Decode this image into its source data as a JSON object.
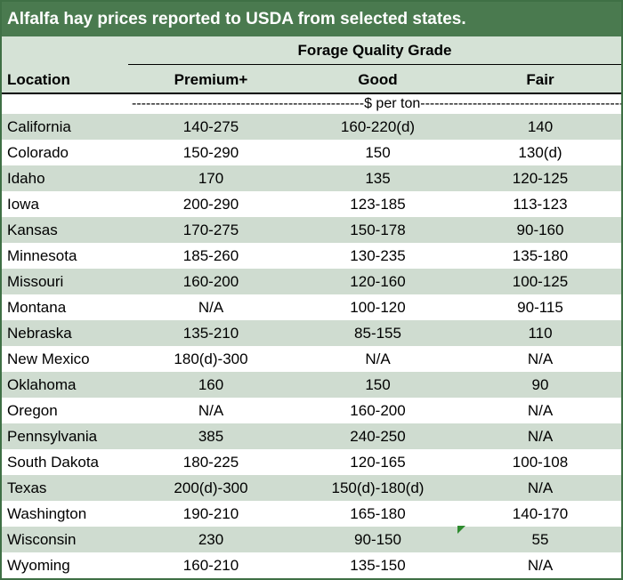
{
  "title": "Alfalfa hay prices reported to USDA from selected states.",
  "group_header": "Forage Quality Grade",
  "columns": {
    "location": "Location",
    "premium": "Premium+",
    "good": "Good",
    "fair": "Fair"
  },
  "unit_label": "-------------------------------------------------$ per ton-----------------------------------------------------------------------",
  "rows": [
    {
      "location": "California",
      "premium": "140-275",
      "good": "160-220(d)",
      "fair": "140"
    },
    {
      "location": "Colorado",
      "premium": "150-290",
      "good": "150",
      "fair": "130(d)"
    },
    {
      "location": "Idaho",
      "premium": "170",
      "good": "135",
      "fair": "120-125"
    },
    {
      "location": "Iowa",
      "premium": "200-290",
      "good": "123-185",
      "fair": "113-123"
    },
    {
      "location": "Kansas",
      "premium": "170-275",
      "good": "150-178",
      "fair": "90-160"
    },
    {
      "location": "Minnesota",
      "premium": "185-260",
      "good": "130-235",
      "fair": "135-180"
    },
    {
      "location": "Missouri",
      "premium": "160-200",
      "good": "120-160",
      "fair": "100-125"
    },
    {
      "location": "Montana",
      "premium": "N/A",
      "good": "100-120",
      "fair": "90-115"
    },
    {
      "location": "Nebraska",
      "premium": "135-210",
      "good": "85-155",
      "fair": "110"
    },
    {
      "location": "New Mexico",
      "premium": "180(d)-300",
      "good": "N/A",
      "fair": "N/A"
    },
    {
      "location": "Oklahoma",
      "premium": "160",
      "good": "150",
      "fair": "90"
    },
    {
      "location": "Oregon",
      "premium": "N/A",
      "good": "160-200",
      "fair": "N/A"
    },
    {
      "location": "Pennsylvania",
      "premium": "385",
      "good": "240-250",
      "fair": "N/A"
    },
    {
      "location": "South Dakota",
      "premium": "180-225",
      "good": "120-165",
      "fair": "100-108"
    },
    {
      "location": "Texas",
      "premium": "200(d)-300",
      "good": "150(d)-180(d)",
      "fair": "N/A"
    },
    {
      "location": "Washington",
      "premium": "190-210",
      "good": "165-180",
      "fair": "140-170"
    },
    {
      "location": "Wisconsin",
      "premium": "230",
      "good": "90-150",
      "fair": "55"
    },
    {
      "location": "Wyoming",
      "premium": "160-210",
      "good": "135-150",
      "fair": "N/A"
    }
  ],
  "colors": {
    "title_bg": "#4a7a4f",
    "header_bg": "#d5e2d6",
    "shaded_row": "#cfdcd0",
    "border": "#3f7045"
  }
}
